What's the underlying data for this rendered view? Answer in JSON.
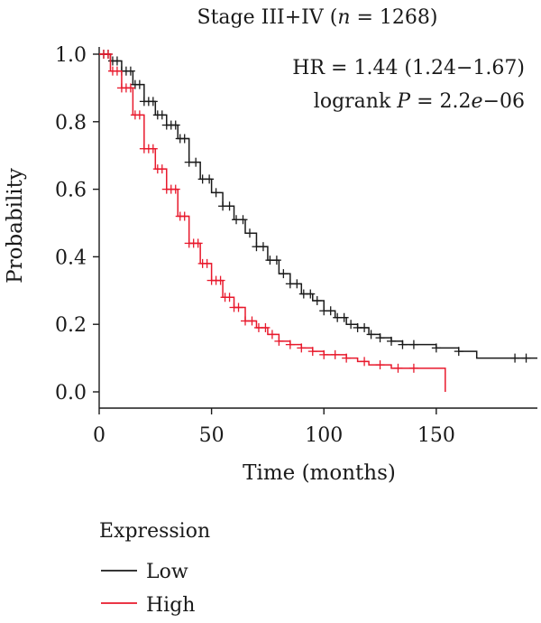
{
  "chart_data": {
    "type": "line",
    "subtype": "kaplan-meier",
    "title_prefix": "Stage III+IV (",
    "title_var": "n",
    "title_suffix": " = 1268)",
    "xlabel": "Time (months)",
    "ylabel": "Probability",
    "xlim": [
      0,
      195
    ],
    "ylim": [
      0,
      1.0
    ],
    "xticks": [
      0,
      50,
      100,
      150
    ],
    "yticks": [
      "0.0",
      "0.2",
      "0.4",
      "0.6",
      "0.8",
      "1.0"
    ],
    "annotation_hr": "HR = 1.44 (1.24−1.67)",
    "annotation_p_prefix": "logrank ",
    "annotation_p_var": "P",
    "annotation_p_mid": " = 2.2",
    "annotation_p_e": "e",
    "annotation_p_suffix": "−06",
    "legend_title": "Expression",
    "legend_position": "bottom-left",
    "series": [
      {
        "name": "Low",
        "color": "#1a1a1a",
        "points": [
          [
            0,
            1.0
          ],
          [
            5,
            0.98
          ],
          [
            10,
            0.95
          ],
          [
            15,
            0.91
          ],
          [
            20,
            0.86
          ],
          [
            25,
            0.82
          ],
          [
            30,
            0.79
          ],
          [
            35,
            0.75
          ],
          [
            40,
            0.68
          ],
          [
            45,
            0.63
          ],
          [
            50,
            0.59
          ],
          [
            55,
            0.55
          ],
          [
            60,
            0.51
          ],
          [
            65,
            0.47
          ],
          [
            70,
            0.43
          ],
          [
            75,
            0.39
          ],
          [
            80,
            0.35
          ],
          [
            85,
            0.32
          ],
          [
            90,
            0.29
          ],
          [
            95,
            0.27
          ],
          [
            100,
            0.24
          ],
          [
            105,
            0.22
          ],
          [
            110,
            0.2
          ],
          [
            115,
            0.19
          ],
          [
            120,
            0.17
          ],
          [
            125,
            0.16
          ],
          [
            130,
            0.15
          ],
          [
            135,
            0.14
          ],
          [
            140,
            0.14
          ],
          [
            150,
            0.13
          ],
          [
            160,
            0.12
          ],
          [
            168,
            0.12
          ],
          [
            168,
            0.1
          ],
          [
            195,
            0.1
          ]
        ],
        "censors": [
          2,
          4,
          6,
          8,
          10,
          12,
          14,
          16,
          18,
          20,
          22,
          24,
          26,
          28,
          30,
          32,
          34,
          36,
          38,
          40,
          43,
          46,
          49,
          52,
          55,
          58,
          61,
          64,
          67,
          70,
          73,
          76,
          79,
          82,
          85,
          88,
          91,
          94,
          97,
          100,
          103,
          106,
          109,
          112,
          115,
          118,
          121,
          125,
          130,
          135,
          140,
          150,
          160,
          185,
          190
        ]
      },
      {
        "name": "High",
        "color": "#e8192c",
        "points": [
          [
            0,
            1.0
          ],
          [
            5,
            0.95
          ],
          [
            10,
            0.9
          ],
          [
            15,
            0.82
          ],
          [
            20,
            0.72
          ],
          [
            25,
            0.66
          ],
          [
            30,
            0.6
          ],
          [
            35,
            0.52
          ],
          [
            40,
            0.44
          ],
          [
            45,
            0.38
          ],
          [
            50,
            0.33
          ],
          [
            55,
            0.28
          ],
          [
            60,
            0.25
          ],
          [
            65,
            0.21
          ],
          [
            70,
            0.19
          ],
          [
            75,
            0.17
          ],
          [
            80,
            0.15
          ],
          [
            85,
            0.14
          ],
          [
            90,
            0.13
          ],
          [
            95,
            0.12
          ],
          [
            100,
            0.11
          ],
          [
            110,
            0.1
          ],
          [
            115,
            0.09
          ],
          [
            120,
            0.08
          ],
          [
            130,
            0.07
          ],
          [
            154,
            0.07
          ],
          [
            154,
            0.0
          ]
        ],
        "censors": [
          2,
          4,
          6,
          8,
          10,
          12,
          14,
          16,
          18,
          20,
          22,
          24,
          26,
          28,
          30,
          32,
          34,
          36,
          38,
          40,
          42,
          44,
          46,
          48,
          50,
          52,
          54,
          56,
          58,
          60,
          62,
          65,
          68,
          71,
          74,
          77,
          80,
          85,
          90,
          95,
          100,
          105,
          110,
          118,
          125,
          133,
          140
        ]
      }
    ]
  }
}
